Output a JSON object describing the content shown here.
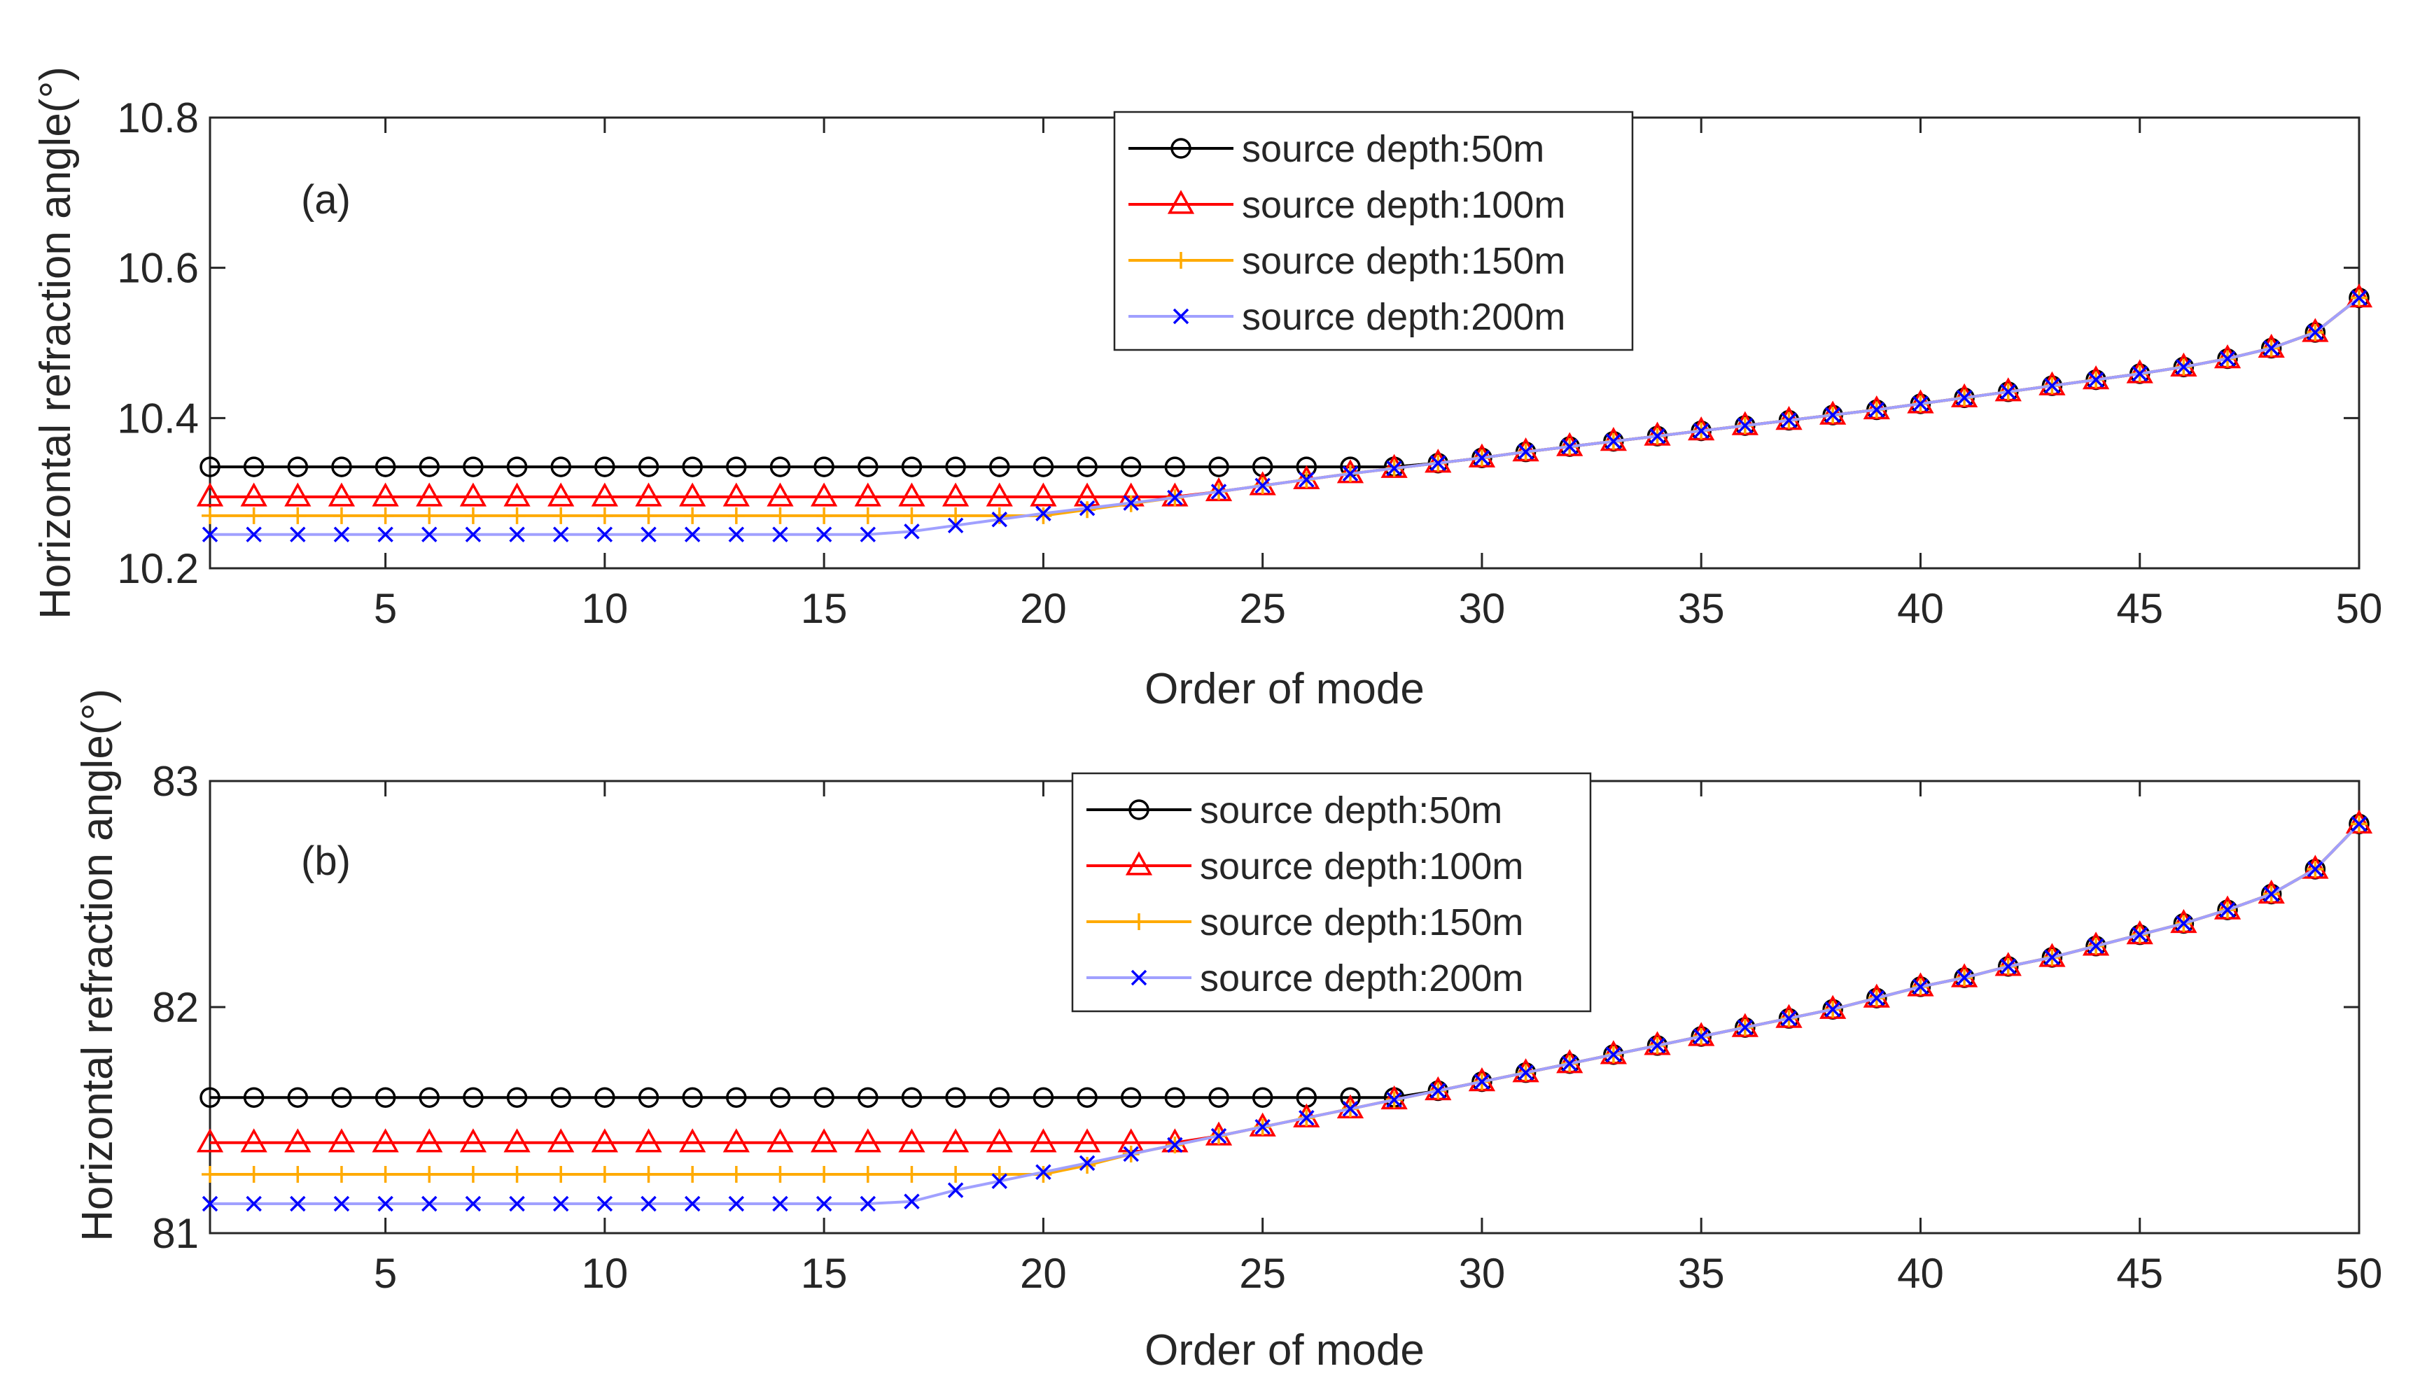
{
  "chart_data": [
    {
      "type": "line",
      "panel_label": "(a)",
      "xlabel": "Order of mode",
      "ylabel": "Horizontal refraction angle(°)",
      "xlim": [
        1,
        50
      ],
      "ylim": [
        10.2,
        10.8
      ],
      "xticks": [
        5,
        10,
        15,
        20,
        25,
        30,
        35,
        40,
        45,
        50
      ],
      "yticks": [
        10.2,
        10.4,
        10.6,
        10.8
      ],
      "ytick_labels": [
        "10.2",
        "10.4",
        "10.6",
        "10.8"
      ],
      "legend_location": "top-center",
      "x": [
        1,
        2,
        3,
        4,
        5,
        6,
        7,
        8,
        9,
        10,
        11,
        12,
        13,
        14,
        15,
        16,
        17,
        18,
        19,
        20,
        21,
        22,
        23,
        24,
        25,
        26,
        27,
        28,
        29,
        30,
        31,
        32,
        33,
        34,
        35,
        36,
        37,
        38,
        39,
        40,
        41,
        42,
        43,
        44,
        45,
        46,
        47,
        48,
        49,
        50
      ],
      "series": [
        {
          "name": "source depth:50m",
          "color": "#000000",
          "marker": "circle",
          "values": [
            10.335,
            10.335,
            10.335,
            10.335,
            10.335,
            10.335,
            10.335,
            10.335,
            10.335,
            10.335,
            10.335,
            10.335,
            10.335,
            10.335,
            10.335,
            10.335,
            10.335,
            10.335,
            10.335,
            10.335,
            10.335,
            10.335,
            10.335,
            10.335,
            10.335,
            10.335,
            10.335,
            10.335,
            10.34,
            10.347,
            10.355,
            10.362,
            10.369,
            10.376,
            10.383,
            10.39,
            10.397,
            10.404,
            10.411,
            10.419,
            10.427,
            10.435,
            10.443,
            10.451,
            10.459,
            10.468,
            10.479,
            10.493,
            10.514,
            10.56
          ]
        },
        {
          "name": "source depth:100m",
          "color": "#ff0000",
          "marker": "triangle",
          "values": [
            10.295,
            10.295,
            10.295,
            10.295,
            10.295,
            10.295,
            10.295,
            10.295,
            10.295,
            10.295,
            10.295,
            10.295,
            10.295,
            10.295,
            10.295,
            10.295,
            10.295,
            10.295,
            10.295,
            10.295,
            10.295,
            10.295,
            10.295,
            10.302,
            10.31,
            10.318,
            10.326,
            10.333,
            10.34,
            10.347,
            10.355,
            10.362,
            10.369,
            10.376,
            10.383,
            10.39,
            10.397,
            10.404,
            10.411,
            10.419,
            10.427,
            10.435,
            10.443,
            10.451,
            10.459,
            10.468,
            10.479,
            10.493,
            10.514,
            10.56
          ]
        },
        {
          "name": "source depth:150m",
          "color": "#ffaa00",
          "marker": "plus",
          "values": [
            10.27,
            10.27,
            10.27,
            10.27,
            10.27,
            10.27,
            10.27,
            10.27,
            10.27,
            10.27,
            10.27,
            10.27,
            10.27,
            10.27,
            10.27,
            10.27,
            10.27,
            10.27,
            10.27,
            10.27,
            10.278,
            10.286,
            10.294,
            10.302,
            10.31,
            10.318,
            10.326,
            10.333,
            10.34,
            10.347,
            10.355,
            10.362,
            10.369,
            10.376,
            10.383,
            10.39,
            10.397,
            10.404,
            10.411,
            10.419,
            10.427,
            10.435,
            10.443,
            10.451,
            10.459,
            10.468,
            10.479,
            10.493,
            10.514,
            10.56
          ]
        },
        {
          "name": "source depth:200m",
          "color": "#0000ff",
          "line_color": "#a0a0ff",
          "marker": "x",
          "values": [
            10.245,
            10.245,
            10.245,
            10.245,
            10.245,
            10.245,
            10.245,
            10.245,
            10.245,
            10.245,
            10.245,
            10.245,
            10.245,
            10.245,
            10.245,
            10.245,
            10.249,
            10.257,
            10.265,
            10.273,
            10.28,
            10.287,
            10.294,
            10.302,
            10.31,
            10.318,
            10.326,
            10.333,
            10.34,
            10.347,
            10.355,
            10.362,
            10.369,
            10.376,
            10.383,
            10.39,
            10.397,
            10.404,
            10.411,
            10.419,
            10.427,
            10.435,
            10.443,
            10.451,
            10.459,
            10.468,
            10.479,
            10.493,
            10.514,
            10.56
          ]
        }
      ]
    },
    {
      "type": "line",
      "panel_label": "(b)",
      "xlabel": "Order of mode",
      "ylabel": "Horizontal refraction angle(°)",
      "xlim": [
        1,
        50
      ],
      "ylim": [
        81,
        83
      ],
      "xticks": [
        5,
        10,
        15,
        20,
        25,
        30,
        35,
        40,
        45,
        50
      ],
      "yticks": [
        81,
        82,
        83
      ],
      "ytick_labels": [
        "81",
        "82",
        "83"
      ],
      "legend_location": "top-center",
      "x": [
        1,
        2,
        3,
        4,
        5,
        6,
        7,
        8,
        9,
        10,
        11,
        12,
        13,
        14,
        15,
        16,
        17,
        18,
        19,
        20,
        21,
        22,
        23,
        24,
        25,
        26,
        27,
        28,
        29,
        30,
        31,
        32,
        33,
        34,
        35,
        36,
        37,
        38,
        39,
        40,
        41,
        42,
        43,
        44,
        45,
        46,
        47,
        48,
        49,
        50
      ],
      "series": [
        {
          "name": "source depth:50m",
          "color": "#000000",
          "marker": "circle",
          "values": [
            81.6,
            81.6,
            81.6,
            81.6,
            81.6,
            81.6,
            81.6,
            81.6,
            81.6,
            81.6,
            81.6,
            81.6,
            81.6,
            81.6,
            81.6,
            81.6,
            81.6,
            81.6,
            81.6,
            81.6,
            81.6,
            81.6,
            81.6,
            81.6,
            81.6,
            81.6,
            81.6,
            81.6,
            81.63,
            81.67,
            81.71,
            81.75,
            81.79,
            81.83,
            81.87,
            81.91,
            81.95,
            81.99,
            82.04,
            82.09,
            82.13,
            82.18,
            82.22,
            82.27,
            82.32,
            82.37,
            82.43,
            82.5,
            82.61,
            82.81
          ]
        },
        {
          "name": "source depth:100m",
          "color": "#ff0000",
          "marker": "triangle",
          "values": [
            81.4,
            81.4,
            81.4,
            81.4,
            81.4,
            81.4,
            81.4,
            81.4,
            81.4,
            81.4,
            81.4,
            81.4,
            81.4,
            81.4,
            81.4,
            81.4,
            81.4,
            81.4,
            81.4,
            81.4,
            81.4,
            81.4,
            81.4,
            81.43,
            81.47,
            81.51,
            81.55,
            81.59,
            81.63,
            81.67,
            81.71,
            81.75,
            81.79,
            81.83,
            81.87,
            81.91,
            81.95,
            81.99,
            82.04,
            82.09,
            82.13,
            82.18,
            82.22,
            82.27,
            82.32,
            82.37,
            82.43,
            82.5,
            82.61,
            82.81
          ]
        },
        {
          "name": "source depth:150m",
          "color": "#ffaa00",
          "marker": "plus",
          "values": [
            81.26,
            81.26,
            81.26,
            81.26,
            81.26,
            81.26,
            81.26,
            81.26,
            81.26,
            81.26,
            81.26,
            81.26,
            81.26,
            81.26,
            81.26,
            81.26,
            81.26,
            81.26,
            81.26,
            81.26,
            81.3,
            81.35,
            81.39,
            81.43,
            81.47,
            81.51,
            81.55,
            81.59,
            81.63,
            81.67,
            81.71,
            81.75,
            81.79,
            81.83,
            81.87,
            81.91,
            81.95,
            81.99,
            82.04,
            82.09,
            82.13,
            82.18,
            82.22,
            82.27,
            82.32,
            82.37,
            82.43,
            82.5,
            82.61,
            82.81
          ]
        },
        {
          "name": "source depth:200m",
          "color": "#0000ff",
          "line_color": "#a0a0ff",
          "marker": "x",
          "values": [
            81.13,
            81.13,
            81.13,
            81.13,
            81.13,
            81.13,
            81.13,
            81.13,
            81.13,
            81.13,
            81.13,
            81.13,
            81.13,
            81.13,
            81.13,
            81.13,
            81.14,
            81.19,
            81.23,
            81.27,
            81.31,
            81.35,
            81.39,
            81.43,
            81.47,
            81.51,
            81.55,
            81.59,
            81.63,
            81.67,
            81.71,
            81.75,
            81.79,
            81.83,
            81.87,
            81.91,
            81.95,
            81.99,
            82.04,
            82.09,
            82.13,
            82.18,
            82.22,
            82.27,
            82.32,
            82.37,
            82.43,
            82.5,
            82.61,
            82.81
          ]
        }
      ]
    }
  ]
}
